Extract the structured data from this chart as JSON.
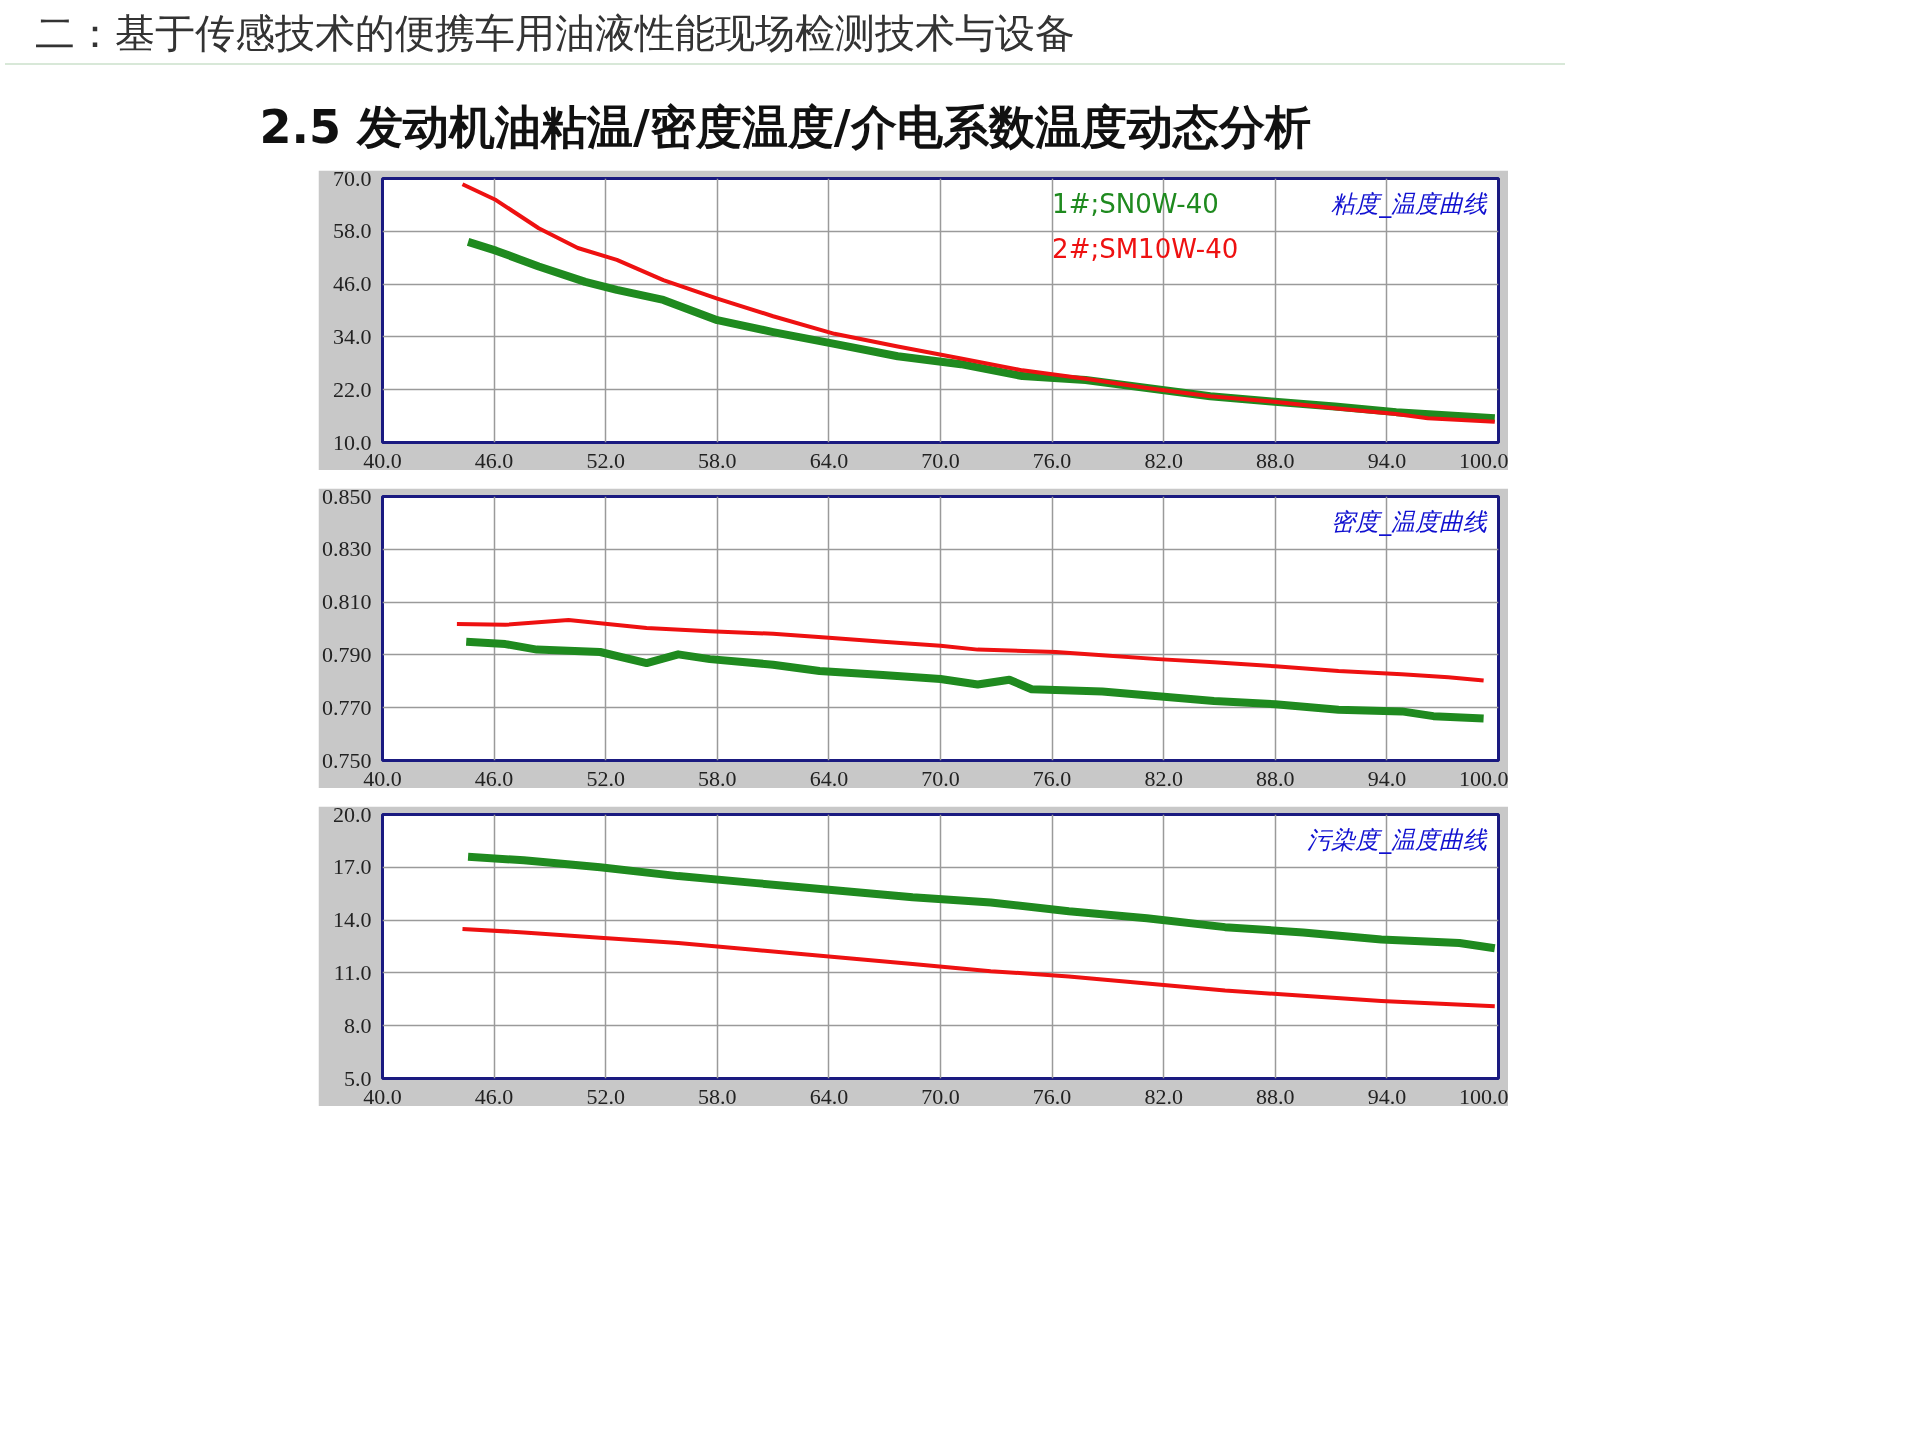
{
  "chart_data": [
    {
      "type": "other",
      "annotations": [
        "二：基于传感技术的便携车用油液性能现场检测技术与设备"
      ],
      "title": "2.5 发动机油粘温/密度温度/介电系数温度动态分析"
    },
    {
      "type": "line",
      "title": "粘度_温度曲线",
      "legend": "top",
      "grid": true,
      "xlim": [
        40,
        100
      ],
      "xticks": [
        {
          "value": 40,
          "label": "40.0"
        },
        {
          "value": 46,
          "label": "46.0"
        },
        {
          "value": 52,
          "label": "52.0"
        },
        {
          "value": 58,
          "label": "58.0"
        },
        {
          "value": 64,
          "label": "64.0"
        },
        {
          "value": 70,
          "label": "70.0"
        },
        {
          "value": 76,
          "label": "76.0"
        },
        {
          "value": 82,
          "label": "82.0"
        },
        {
          "value": 88,
          "label": "88.0"
        },
        {
          "value": 94,
          "label": "94.0"
        },
        {
          "value": 100,
          "label": "100.0"
        }
      ],
      "ylim": [
        10,
        70
      ],
      "yticks": [
        {
          "value": 10,
          "label": "10.0"
        },
        {
          "value": 22,
          "label": "22.0"
        },
        {
          "value": 34,
          "label": "34.0"
        },
        {
          "value": 46,
          "label": "46.0"
        },
        {
          "value": 58,
          "label": "58.0"
        },
        {
          "value": 70,
          "label": "70.0"
        }
      ],
      "series": [
        {
          "name": "1#;SN0W-40",
          "color": "#1f8a1f",
          "x": [
            44.6,
            46.1,
            48.4,
            50.9,
            52.6,
            55.1,
            58.0,
            61.0,
            64.3,
            67.7,
            71.1,
            74.4,
            77.8,
            81.1,
            84.5,
            87.8,
            91.2,
            94.5,
            99.8
          ],
          "values": [
            55.6,
            53.6,
            50.0,
            46.5,
            44.7,
            42.4,
            37.8,
            35.1,
            32.4,
            29.6,
            27.8,
            25.1,
            24.2,
            22.4,
            20.5,
            19.3,
            18.2,
            16.9,
            15.5
          ]
        },
        {
          "name": "2#;SM10W-40",
          "color": "#ee1111",
          "x": [
            44.3,
            46.1,
            48.4,
            50.5,
            52.6,
            55.1,
            58.0,
            61.0,
            64.3,
            67.7,
            71.1,
            74.4,
            77.8,
            81.1,
            84.5,
            87.8,
            91.2,
            94.5,
            96.2,
            99.8
          ],
          "values": [
            68.7,
            65.1,
            58.7,
            54.2,
            51.5,
            46.9,
            42.7,
            38.7,
            34.7,
            31.8,
            29.1,
            26.4,
            24.5,
            22.4,
            20.5,
            19.3,
            17.8,
            16.5,
            15.5,
            14.7
          ]
        }
      ]
    },
    {
      "type": "line",
      "title": "密度_温度曲线",
      "grid": true,
      "xlim": [
        40,
        100
      ],
      "xticks": [
        {
          "value": 40,
          "label": "40.0"
        },
        {
          "value": 46,
          "label": "46.0"
        },
        {
          "value": 52,
          "label": "52.0"
        },
        {
          "value": 58,
          "label": "58.0"
        },
        {
          "value": 64,
          "label": "64.0"
        },
        {
          "value": 70,
          "label": "70.0"
        },
        {
          "value": 76,
          "label": "76.0"
        },
        {
          "value": 82,
          "label": "82.0"
        },
        {
          "value": 88,
          "label": "88.0"
        },
        {
          "value": 94,
          "label": "94.0"
        },
        {
          "value": 100,
          "label": "100.0"
        }
      ],
      "ylim": [
        0.75,
        0.85
      ],
      "yticks": [
        {
          "value": 0.75,
          "label": "0.750"
        },
        {
          "value": 0.77,
          "label": "0.770"
        },
        {
          "value": 0.79,
          "label": "0.790"
        },
        {
          "value": 0.81,
          "label": "0.810"
        },
        {
          "value": 0.83,
          "label": "0.830"
        },
        {
          "value": 0.85,
          "label": "0.850"
        }
      ],
      "series": [
        {
          "color": "#1f8a1f",
          "x": [
            44.5,
            46.6,
            48.3,
            51.7,
            54.2,
            55.9,
            57.6,
            61.0,
            63.5,
            66.9,
            70.0,
            72.0,
            73.7,
            74.9,
            78.7,
            81.7,
            84.7,
            88.0,
            91.4,
            94.8,
            96.5,
            99.2
          ],
          "values": [
            0.795,
            0.7941,
            0.792,
            0.7911,
            0.7869,
            0.7902,
            0.7884,
            0.7863,
            0.7839,
            0.7824,
            0.7809,
            0.7788,
            0.7806,
            0.777,
            0.7761,
            0.7743,
            0.7725,
            0.7713,
            0.7692,
            0.7686,
            0.7668,
            0.7659
          ]
        },
        {
          "color": "#ee1111",
          "x": [
            44.0,
            46.6,
            50.0,
            54.2,
            57.6,
            61.0,
            64.0,
            66.9,
            70.0,
            72.0,
            76.2,
            78.7,
            81.7,
            84.7,
            88.0,
            91.4,
            94.8,
            97.3,
            99.2
          ],
          "values": [
            0.8017,
            0.8014,
            0.8032,
            0.8002,
            0.799,
            0.798,
            0.7965,
            0.795,
            0.7935,
            0.792,
            0.7911,
            0.7899,
            0.7884,
            0.7872,
            0.7857,
            0.7839,
            0.7827,
            0.7815,
            0.7803
          ]
        }
      ]
    },
    {
      "type": "line",
      "title": "污染度_温度曲线",
      "grid": true,
      "xlim": [
        40,
        100
      ],
      "xticks": [
        {
          "value": 40,
          "label": "40.0"
        },
        {
          "value": 46,
          "label": "46.0"
        },
        {
          "value": 52,
          "label": "52.0"
        },
        {
          "value": 58,
          "label": "58.0"
        },
        {
          "value": 64,
          "label": "64.0"
        },
        {
          "value": 70,
          "label": "70.0"
        },
        {
          "value": 76,
          "label": "76.0"
        },
        {
          "value": 82,
          "label": "82.0"
        },
        {
          "value": 88,
          "label": "88.0"
        },
        {
          "value": 94,
          "label": "94.0"
        },
        {
          "value": 100,
          "label": "100.0"
        }
      ],
      "ylim": [
        5,
        20
      ],
      "yticks": [
        {
          "value": 5,
          "label": "5.0"
        },
        {
          "value": 8,
          "label": "8.0"
        },
        {
          "value": 11,
          "label": "11.0"
        },
        {
          "value": 14,
          "label": "14.0"
        },
        {
          "value": 17,
          "label": "17.0"
        },
        {
          "value": 20,
          "label": "20.0"
        }
      ],
      "series": [
        {
          "color": "#1f8a1f",
          "x": [
            44.6,
            47.6,
            51.7,
            55.9,
            60.1,
            64.3,
            68.5,
            72.7,
            76.9,
            81.1,
            85.3,
            89.5,
            93.7,
            97.9,
            99.8
          ],
          "values": [
            17.6,
            17.4,
            17.0,
            16.5,
            16.1,
            15.7,
            15.3,
            15.0,
            14.5,
            14.1,
            13.6,
            13.3,
            12.9,
            12.7,
            12.4
          ]
        },
        {
          "color": "#ee1111",
          "x": [
            44.3,
            47.6,
            51.7,
            55.9,
            60.1,
            64.3,
            68.5,
            72.7,
            76.9,
            81.1,
            85.3,
            89.5,
            93.7,
            99.8
          ],
          "values": [
            13.5,
            13.3,
            13.0,
            12.7,
            12.3,
            11.9,
            11.5,
            11.1,
            10.8,
            10.4,
            10.0,
            9.7,
            9.4,
            9.1
          ]
        }
      ]
    }
  ]
}
